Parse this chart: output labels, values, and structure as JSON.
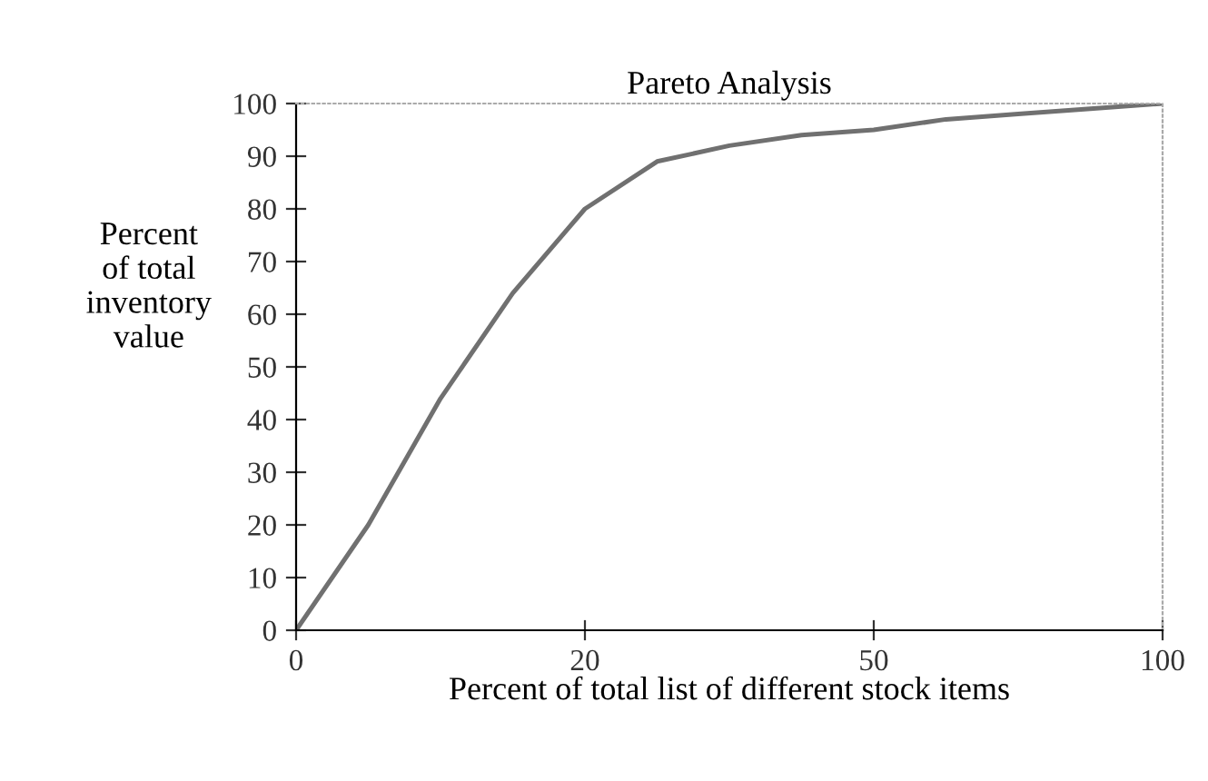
{
  "chart_data": {
    "type": "line",
    "title": "Pareto Analysis",
    "xlabel": "Percent of total list of different stock items",
    "ylabel": "Percent\nof total\ninventory\nvalue",
    "categories": [
      "0",
      null,
      null,
      null,
      "20",
      null,
      null,
      null,
      "50",
      null,
      null,
      null,
      "100"
    ],
    "series": [
      {
        "color": "#707070",
        "values": [
          0,
          20,
          44,
          64,
          80,
          89,
          92,
          94,
          95,
          97,
          98,
          99,
          100
        ]
      }
    ],
    "ylim": [
      0,
      100
    ],
    "yticks": [
      0,
      10,
      20,
      30,
      40,
      50,
      60,
      70,
      80,
      90,
      100
    ],
    "marker": "none",
    "line_style": "solid"
  }
}
